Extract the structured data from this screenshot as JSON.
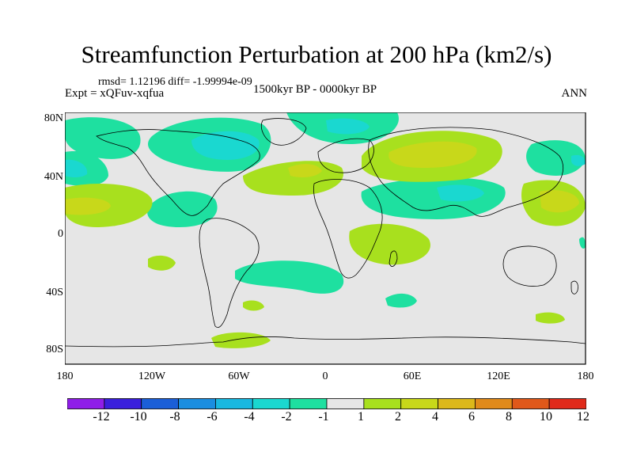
{
  "title": "Streamfunction Perturbation at 200 hPa (km2/s)",
  "stats": "rmsd= 1.12196 diff= -1.99994e-09",
  "experiment": "Expt = xQFuv-xqfua",
  "period": "1500kyr BP - 0000kyr BP",
  "season": "ANN",
  "y_axis": [
    "80N",
    "40N",
    "0",
    "40S",
    "80S"
  ],
  "x_axis": [
    "180",
    "120W",
    "60W",
    "0",
    "60E",
    "120E",
    "180"
  ],
  "colorbar": {
    "labels": [
      "-12",
      "-10",
      "-8",
      "-6",
      "-4",
      "-2",
      "-1",
      "1",
      "2",
      "4",
      "6",
      "8",
      "10",
      "12"
    ],
    "colors": [
      "#8f1ee8",
      "#3a1fdc",
      "#1b5fd8",
      "#1a8ee0",
      "#19b8e0",
      "#1ad8d0",
      "#1ee0a0",
      "#e6e6e6",
      "#a8e01e",
      "#c8d81a",
      "#dcb81a",
      "#e08a1a",
      "#e0581a",
      "#e02a1a"
    ]
  },
  "map_colors": {
    "background": "#e6e6e6",
    "neg1": "#1ee0a0",
    "neg2": "#1ad8d0",
    "pos1": "#a8e01e",
    "pos2": "#c8d81a",
    "coast": "#000000"
  }
}
